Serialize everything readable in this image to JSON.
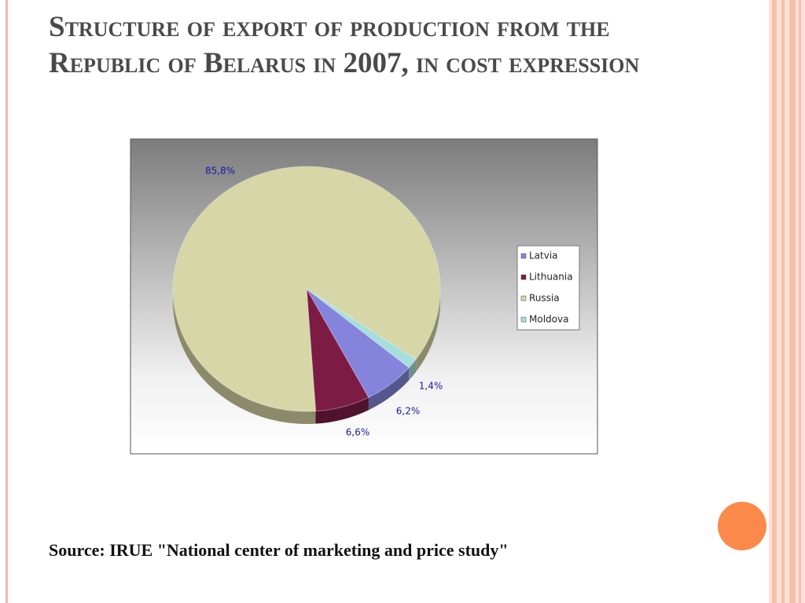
{
  "chart_data": {
    "type": "pie",
    "title": "Structure of export of production from the Republic of Belarus in 2007, in cost expression",
    "categories": [
      "Latvia",
      "Lithuania",
      "Russia",
      "Moldova"
    ],
    "values": [
      6.2,
      6.6,
      85.8,
      1.4
    ],
    "value_labels": [
      "6,2%",
      "6,6%",
      "85,8%",
      "1,4%"
    ],
    "colors": [
      "#8484dc",
      "#7c1c44",
      "#d6d6a6",
      "#a6dede"
    ],
    "legend": "right",
    "source": "Source: IRUE \"National center of marketing and price study\""
  }
}
